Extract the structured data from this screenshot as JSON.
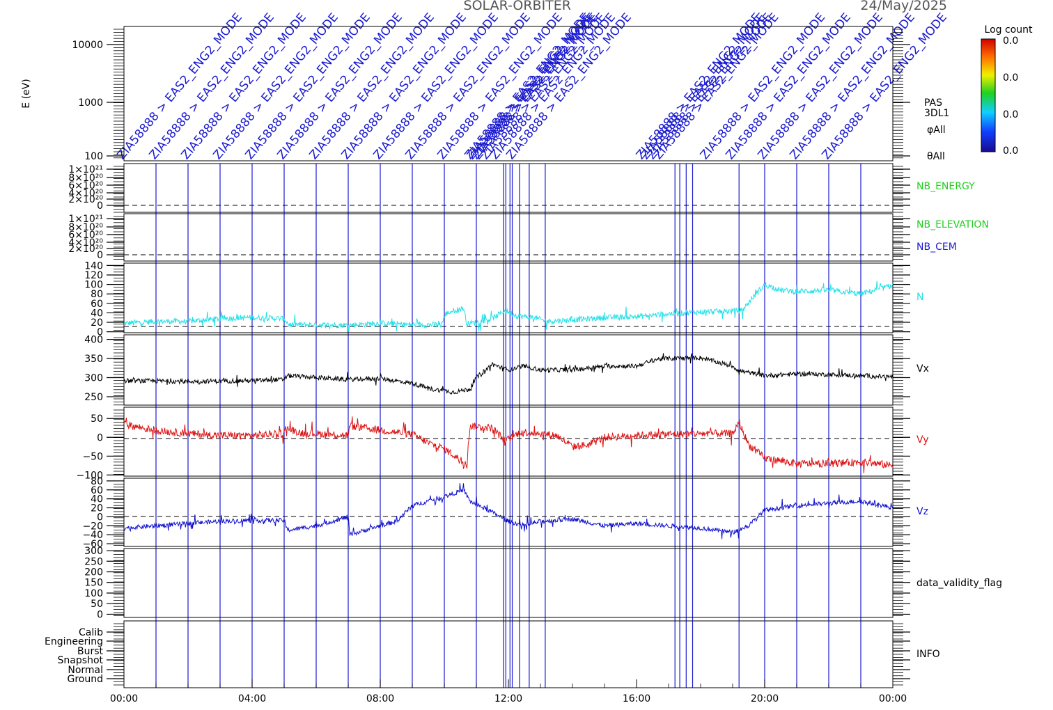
{
  "header": {
    "title": "SOLAR-ORBITER",
    "date": "24/May/2025"
  },
  "mode_annotation": "ZIA58888 > EAS2_ENG2_MODE",
  "mode_change_hours": [
    1,
    2,
    3,
    4,
    5,
    6,
    7,
    8,
    9,
    10,
    11,
    11.85,
    11.92,
    12.05,
    12.12,
    12.35,
    12.65,
    13.15,
    17.2,
    17.35,
    17.55,
    17.75,
    19.2,
    20,
    21,
    22,
    23
  ],
  "colorbar": {
    "title": "Log count",
    "ticks": [
      "0.0",
      "0.0",
      "0.0",
      "0.0"
    ]
  },
  "panel_labels": {
    "energy": [
      "PAS",
      "3DL1",
      "φAll",
      "θAll"
    ],
    "nb_energy": "NB_ENERGY",
    "nb_elevation": "NB_ELEVATION",
    "nb_cem": "NB_CEM",
    "n": "N",
    "vx": "Vx",
    "vy": "Vy",
    "vz": "Vz",
    "validity": "data_validity_flag",
    "info": "INFO"
  },
  "colors": {
    "axis": "#000000",
    "annotation": "#1a1ad0",
    "nb_energy": "#22cc22",
    "nb_elevation": "#22cc22",
    "nb_cem": "#1a1ad0",
    "n": "#22e0e8",
    "vx": "#000000",
    "vy": "#dd1111",
    "vz": "#1010cc"
  },
  "chart_data": {
    "type": "line",
    "x_axis": {
      "label": "",
      "unit": "hours",
      "range": [
        0,
        24
      ],
      "tick_labels": [
        "00:00",
        "04:00",
        "08:00",
        "12:00",
        "16:00",
        "20:00",
        "00:00"
      ]
    },
    "panels": [
      {
        "id": "energy",
        "ylabel": "E (eV)",
        "scale": "log",
        "ylim": [
          100,
          20000
        ],
        "tick_labels": [
          "10000",
          "1000",
          "100"
        ]
      },
      {
        "id": "nb_energy",
        "ylim": [
          0,
          1.1e+21
        ],
        "tick_labels": [
          "1×10²¹",
          "8×10²⁰",
          "6×10²⁰",
          "4×10²⁰",
          "2×10²⁰",
          "0"
        ]
      },
      {
        "id": "nb_elev",
        "ylim": [
          0,
          1.1e+21
        ],
        "tick_labels": [
          "1×10²¹",
          "8×10²⁰",
          "6×10²⁰",
          "4×10²⁰",
          "2×10²⁰",
          "0"
        ]
      },
      {
        "id": "n",
        "ylim": [
          -2,
          145
        ],
        "tick_labels": [
          "140",
          "120",
          "100",
          "80",
          "60",
          "40",
          "20",
          "0"
        ]
      },
      {
        "id": "vx",
        "ylim": [
          228,
          412
        ],
        "tick_labels": [
          "400",
          "350",
          "300",
          "250"
        ]
      },
      {
        "id": "vy",
        "ylim": [
          -103,
          80
        ],
        "tick_labels": [
          "50",
          "0",
          "−50",
          "−100"
        ]
      },
      {
        "id": "vz",
        "ylim": [
          -66,
          86
        ],
        "tick_labels": [
          "80",
          "60",
          "40",
          "20",
          "0",
          "−20",
          "−40",
          "−60"
        ]
      },
      {
        "id": "validity",
        "ylim": [
          -15,
          310
        ],
        "tick_labels": [
          "300",
          "250",
          "200",
          "150",
          "100",
          "50",
          "0"
        ]
      },
      {
        "id": "info",
        "ylim": [
          0,
          6
        ],
        "tick_labels": [
          "Calib",
          "Engineering",
          "Burst",
          "Snapshot",
          "Normal",
          "Ground"
        ]
      }
    ],
    "series": [
      {
        "name": "N",
        "panel": "n",
        "noise": 6,
        "spikes": 18,
        "x": [
          0,
          1,
          2,
          3,
          4,
          5,
          5.15,
          5.5,
          7,
          8,
          9,
          9.9,
          10.05,
          10.3,
          10.6,
          10.7,
          11,
          11.5,
          11.9,
          12.3,
          12.8,
          13.2,
          14,
          15,
          16,
          17,
          18,
          19,
          19.3,
          19.6,
          20,
          20.5,
          21,
          22,
          23,
          24
        ],
        "y": [
          18,
          22,
          22,
          28,
          30,
          28,
          15,
          15,
          14,
          18,
          15,
          15,
          38,
          45,
          50,
          17,
          20,
          28,
          45,
          33,
          30,
          22,
          25,
          30,
          32,
          38,
          42,
          44,
          45,
          70,
          100,
          88,
          85,
          88,
          80,
          98
        ]
      },
      {
        "name": "Vx",
        "panel": "vx",
        "noise": 6,
        "spikes": 14,
        "x": [
          0,
          2,
          4,
          5,
          5.1,
          7,
          8,
          9,
          9.6,
          10.3,
          10.8,
          11,
          11.5,
          12,
          12.5,
          13,
          14,
          15,
          16,
          16.6,
          17,
          18,
          19,
          19.2,
          20,
          21,
          22,
          23,
          24
        ],
        "y": [
          292,
          290,
          292,
          295,
          305,
          295,
          298,
          285,
          270,
          262,
          270,
          300,
          335,
          320,
          330,
          320,
          320,
          330,
          330,
          348,
          350,
          352,
          330,
          318,
          305,
          310,
          308,
          305,
          302
        ]
      },
      {
        "name": "Vy",
        "panel": "vy",
        "noise": 10,
        "spikes": 25,
        "x": [
          0,
          1,
          2,
          3,
          4,
          5,
          5.05,
          5.5,
          7,
          7.05,
          9,
          9.5,
          10,
          10.5,
          10.7,
          10.8,
          11.5,
          11.9,
          12.4,
          13,
          13.5,
          14,
          14.5,
          15,
          16,
          17,
          18,
          19,
          19.2,
          19.5,
          20,
          21,
          22,
          23,
          24
        ],
        "y": [
          35,
          18,
          10,
          5,
          5,
          10,
          25,
          12,
          5,
          30,
          8,
          -15,
          -30,
          -60,
          -70,
          30,
          25,
          -10,
          15,
          10,
          5,
          -25,
          -20,
          0,
          5,
          8,
          10,
          10,
          40,
          -20,
          -55,
          -70,
          -70,
          -65,
          -75
        ]
      },
      {
        "name": "Vz",
        "panel": "vz",
        "noise": 5,
        "spikes": 18,
        "x": [
          0,
          1,
          2,
          3,
          4,
          5,
          5.1,
          6,
          7,
          7.05,
          8,
          8.5,
          9,
          10,
          10.6,
          10.8,
          11.5,
          12,
          12.5,
          13,
          14,
          15,
          16,
          17,
          18,
          19,
          19.5,
          20,
          21,
          22,
          23,
          24
        ],
        "y": [
          -25,
          -20,
          -15,
          -10,
          -8,
          -8,
          -30,
          -20,
          0,
          -40,
          -20,
          -10,
          25,
          45,
          60,
          35,
          10,
          -10,
          -20,
          -10,
          -5,
          -20,
          -15,
          -20,
          -25,
          -35,
          -20,
          15,
          25,
          30,
          35,
          20
        ]
      }
    ]
  }
}
